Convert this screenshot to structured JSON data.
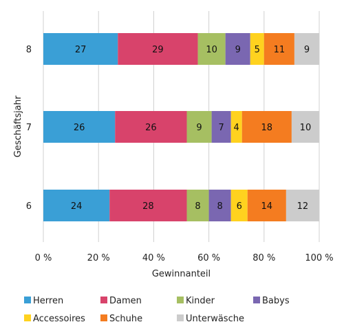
{
  "chart_data": {
    "type": "bar",
    "orientation": "horizontal",
    "stacked": "percent",
    "categories": [
      "8",
      "7",
      "6"
    ],
    "series": [
      {
        "name": "Herren",
        "values": [
          27,
          26,
          24
        ],
        "color": "#3a9fd6"
      },
      {
        "name": "Damen",
        "values": [
          29,
          26,
          28
        ],
        "color": "#d8436b"
      },
      {
        "name": "Kinder",
        "values": [
          10,
          9,
          8
        ],
        "color": "#a6bf62"
      },
      {
        "name": "Babys",
        "values": [
          9,
          7,
          8
        ],
        "color": "#7a67b1"
      },
      {
        "name": "Accessoires",
        "values": [
          5,
          4,
          6
        ],
        "color": "#ffd21f"
      },
      {
        "name": "Schuhe",
        "values": [
          11,
          18,
          14
        ],
        "color": "#f47c20"
      },
      {
        "name": "Unterwäsche",
        "values": [
          9,
          10,
          12
        ],
        "color": "#cccccc"
      }
    ],
    "xlim": [
      0,
      100
    ],
    "xticks": [
      "0 %",
      "20 %",
      "40 %",
      "60 %",
      "80 %",
      "100 %"
    ],
    "xlabel": "Gewinnanteil",
    "ylabel": "Geschäftsjahr",
    "grid": "vertical",
    "legend_position": "bottom"
  }
}
